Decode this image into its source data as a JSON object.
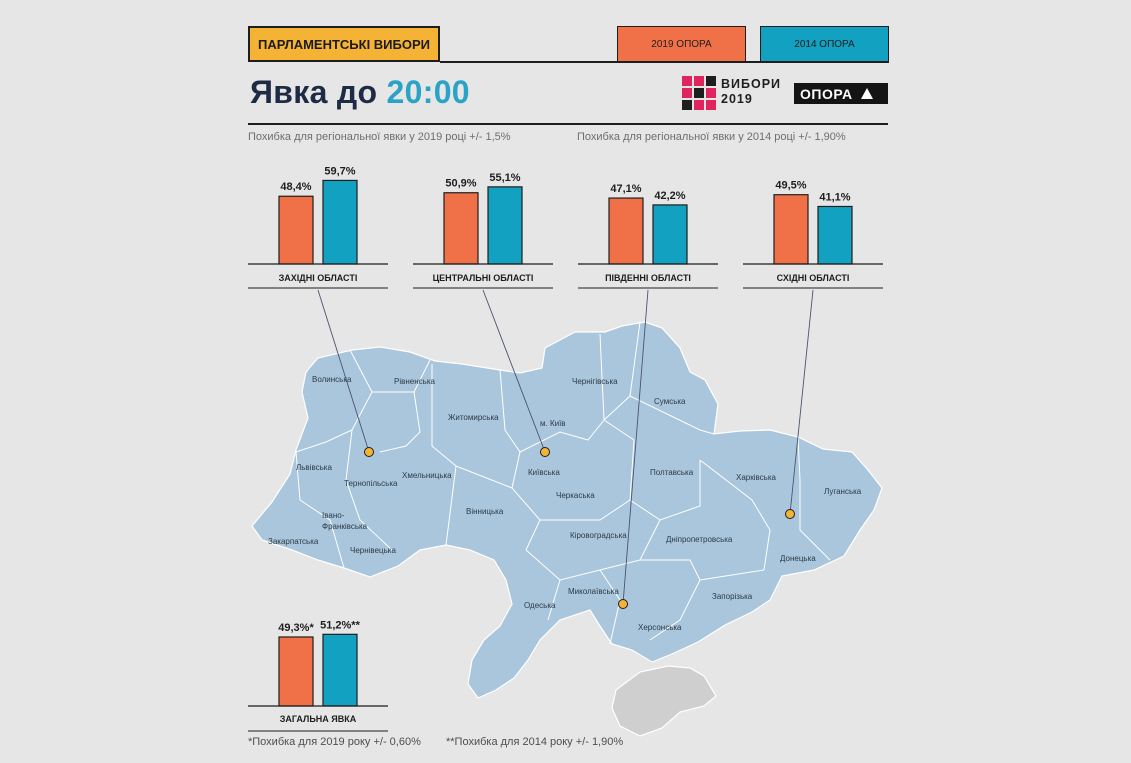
{
  "header": {
    "badge": "ПАРЛАМЕНТСЬКІ ВИБОРИ",
    "title_prefix": "Явка до",
    "title_time": "20:00",
    "logo_line1": "ВИБОРИ",
    "logo_line2": "2019",
    "brand": "ОПОРА"
  },
  "legend": [
    {
      "label": "2019 ОПОРА",
      "color": "#f07048"
    },
    {
      "label": "2014 ОПОРА",
      "color": "#12a1c1"
    }
  ],
  "notes": {
    "note_2019": "Похибка для регіональної явки у 2019 році +/- 1,5%",
    "note_2014": "Похибка для регіональної явки у 2014 році +/- 1,90%"
  },
  "footnotes": {
    "f1": "*Похибка для 2019  року +/- 0,60%",
    "f2": "**Похибка для 2014  року +/- 1,90%"
  },
  "chart_data": {
    "type": "bar",
    "series": [
      {
        "name": "2019 ОПОРА",
        "color": "#f07048"
      },
      {
        "name": "2014 ОПОРА",
        "color": "#12a1c1"
      }
    ],
    "groups": [
      {
        "category": "ЗАХІДНІ ОБЛАСТІ",
        "values": [
          48.4,
          59.7
        ],
        "labels": [
          "48,4%",
          "59,7%"
        ]
      },
      {
        "category": "ЦЕНТРАЛЬНІ ОБЛАСТІ",
        "values": [
          50.9,
          55.1
        ],
        "labels": [
          "50,9%",
          "55,1%"
        ]
      },
      {
        "category": "ПІВДЕННІ ОБЛАСТІ",
        "values": [
          47.1,
          42.2
        ],
        "labels": [
          "47,1%",
          "42,2%"
        ]
      },
      {
        "category": "СХІДНІ ОБЛАСТІ",
        "values": [
          49.5,
          41.1
        ],
        "labels": [
          "49,5%",
          "41,1%"
        ]
      },
      {
        "category": "ЗАГАЛЬНА ЯВКА",
        "values": [
          49.3,
          51.2
        ],
        "labels": [
          "49,3%*",
          "51,2%**"
        ]
      }
    ]
  },
  "map": {
    "fill": "#a9c6dc",
    "crimea_fill": "#cfcfcf",
    "marker_color": "#f5b335",
    "regions": [
      "Волинська",
      "Рівненська",
      "Житомирська",
      "Чернігівська",
      "Сумська",
      "м. Київ",
      "Київська",
      "Полтавська",
      "Харківська",
      "Луганська",
      "Львівська",
      "Тернопільська",
      "Хмельницька",
      "Вінницька",
      "Черкаська",
      "Івано-",
      "Франківська",
      "Закарпатська",
      "Чернівецька",
      "Кіровоградська",
      "Дніпропетровська",
      "Донецька",
      "Миколаївська",
      "Одеська",
      "Запорізька",
      "Херсонська"
    ]
  }
}
